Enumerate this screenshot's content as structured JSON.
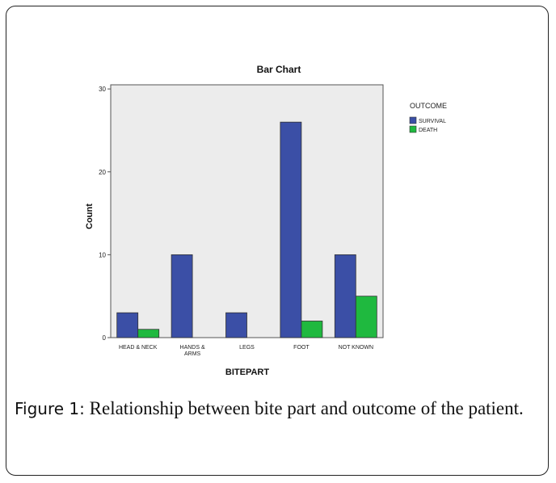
{
  "chart_data": {
    "type": "bar",
    "title": "Bar Chart",
    "xlabel": "BITEPART",
    "ylabel": "Count",
    "categories": [
      "HEAD & NECK",
      "HANDS & ARMS",
      "LEGS",
      "FOOT",
      "NOT KNOWN"
    ],
    "category_lines": [
      [
        "HEAD & NECK"
      ],
      [
        "HANDS &",
        "ARMS"
      ],
      [
        "LEGS"
      ],
      [
        "FOOT"
      ],
      [
        "NOT KNOWN"
      ]
    ],
    "legend_title": "OUTCOME",
    "legend_position": "right",
    "series": [
      {
        "name": "SURVIVAL",
        "values": [
          3,
          10,
          3,
          26,
          10
        ],
        "color": "#3b4fa6"
      },
      {
        "name": "DEATH",
        "values": [
          1,
          0,
          0,
          2,
          5
        ],
        "color": "#1fb93f"
      }
    ],
    "ylim": [
      0,
      30.5
    ],
    "yticks": [
      0,
      10,
      20,
      30
    ],
    "plot_background": "#ececec",
    "grid": false
  },
  "caption": {
    "label": "Figure 1:",
    "text": "Relationship between bite part and outcome of the patient."
  }
}
